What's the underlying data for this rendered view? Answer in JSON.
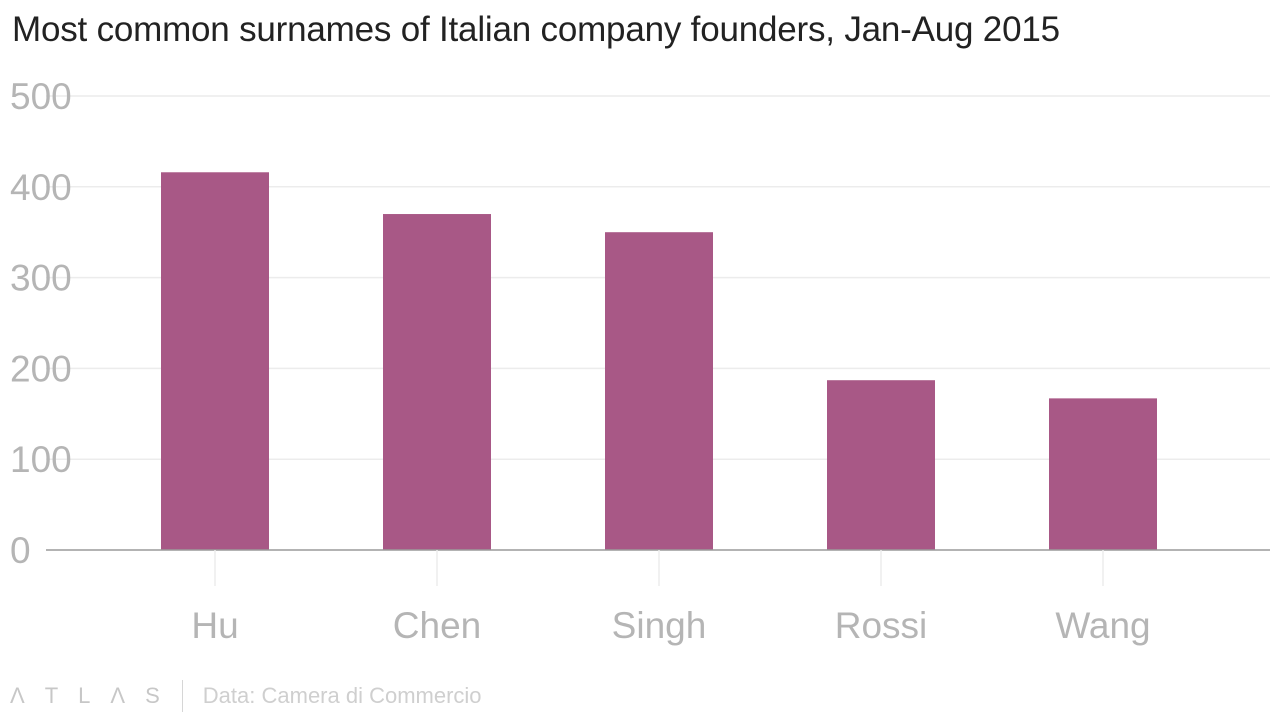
{
  "title": "Most common surnames of Italian company founders, Jan-Aug 2015",
  "footer": {
    "brand_letters": [
      "Λ",
      "T",
      "L",
      "Λ",
      "S"
    ],
    "source": "Data: Camera di Commercio"
  },
  "colors": {
    "bar": "#a85886",
    "grid": "#ececec",
    "axis": "#9a9a9a",
    "tick_text": "#b5b5b5",
    "title": "#222222"
  },
  "chart_data": {
    "type": "bar",
    "title": "Most common surnames of Italian company founders, Jan-Aug 2015",
    "categories": [
      "Hu",
      "Chen",
      "Singh",
      "Rossi",
      "Wang"
    ],
    "values": [
      416,
      370,
      350,
      187,
      167
    ],
    "xlabel": "",
    "ylabel": "",
    "ylim": [
      0,
      500
    ],
    "yticks": [
      0,
      100,
      200,
      300,
      400,
      500
    ],
    "ytick_labels": [
      "0",
      "100",
      "200",
      "300",
      "400",
      "500"
    ],
    "grid": true,
    "legend": "none"
  }
}
